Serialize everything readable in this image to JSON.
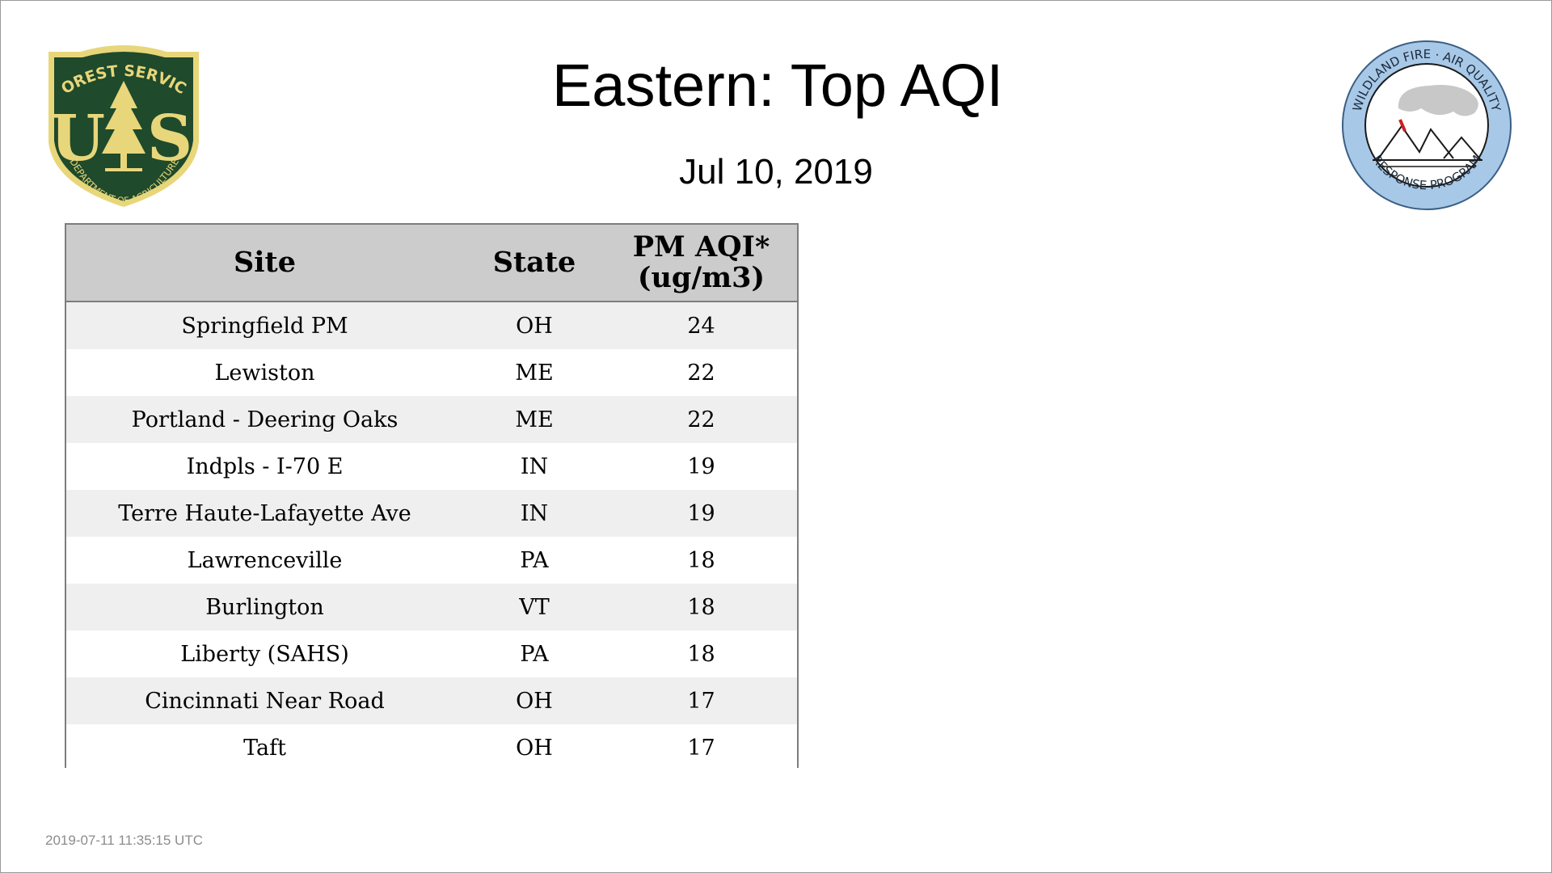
{
  "header": {
    "title": "Eastern: Top AQI",
    "date": "Jul 10, 2019"
  },
  "logos": {
    "forest_service": {
      "icon": "forest-service-shield-logo",
      "top_text": "FOREST SERVICE",
      "bottom_text": "DEPARTMENT OF AGRICULTURE",
      "letters": "US"
    },
    "wildland_fire": {
      "icon": "wildland-fire-air-quality-logo",
      "top_text": "WILDLAND FIRE · AIR QUALITY",
      "bottom_text": "RESPONSE PROGRAM"
    }
  },
  "table": {
    "headers": {
      "site": "Site",
      "state": "State",
      "pm_line1": "PM AQI*",
      "pm_line2": "(ug/m3)"
    },
    "rows": [
      {
        "site": "Springfield PM",
        "state": "OH",
        "aqi": "24"
      },
      {
        "site": "Lewiston",
        "state": "ME",
        "aqi": "22"
      },
      {
        "site": "Portland - Deering Oaks",
        "state": "ME",
        "aqi": "22"
      },
      {
        "site": "Indpls - I-70 E",
        "state": "IN",
        "aqi": "19"
      },
      {
        "site": "Terre Haute-Lafayette Ave",
        "state": "IN",
        "aqi": "19"
      },
      {
        "site": "Lawrenceville",
        "state": "PA",
        "aqi": "18"
      },
      {
        "site": "Burlington",
        "state": "VT",
        "aqi": "18"
      },
      {
        "site": "Liberty (SAHS)",
        "state": "PA",
        "aqi": "18"
      },
      {
        "site": "Cincinnati Near Road",
        "state": "OH",
        "aqi": "17"
      },
      {
        "site": "Taft",
        "state": "OH",
        "aqi": "17"
      }
    ]
  },
  "footer": {
    "timestamp": "2019-07-11 11:35:15 UTC"
  },
  "colors": {
    "header_bg": "#cccccc",
    "row_alt_bg": "#efefef",
    "fs_green": "#1f4a2b",
    "fs_gold": "#e8d67a",
    "wf_blue": "#a8c8e8"
  }
}
